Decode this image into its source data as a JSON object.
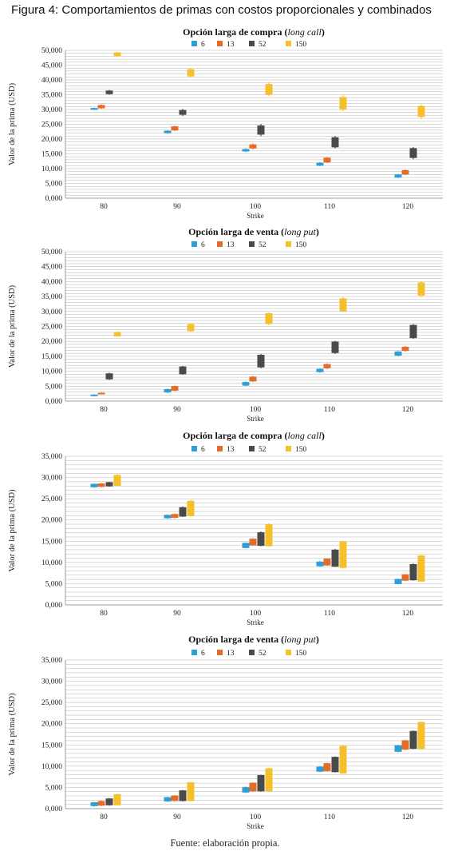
{
  "figure_title": "Figura 4: Comportamientos de primas con costos proporcionales y combinados",
  "source": "Fuente: elaboración propia.",
  "legend_labels": [
    "6",
    "13",
    "52",
    "150"
  ],
  "colors": {
    "6": "#2e9fd6",
    "13": "#e46c2a",
    "52": "#4a4a4a",
    "150": "#f5c02a",
    "grid": "#b5b5b5"
  },
  "chart_data": [
    {
      "type": "candlestick",
      "title_main": "Opción larga de compra (",
      "title_em": "long call",
      "title_end": ")",
      "xlabel": "Strike",
      "ylabel": "Valor de la prima (USD)",
      "categories": [
        "80",
        "90",
        "100",
        "110",
        "120"
      ],
      "yticks": [
        "0,000",
        "5,000",
        "10,000",
        "15,000",
        "20,000",
        "25,000",
        "30,000",
        "35,000",
        "40,000",
        "45,000",
        "50,000"
      ],
      "ylim": [
        0,
        50000
      ],
      "series": [
        {
          "name": "6",
          "low": [
            29800,
            21800,
            15600,
            10800,
            6800
          ],
          "high": [
            30600,
            23000,
            16800,
            12200,
            8200
          ],
          "open": [
            29900,
            22000,
            15800,
            11000,
            7000
          ],
          "close": [
            30500,
            22800,
            16600,
            12000,
            8000
          ]
        },
        {
          "name": "13",
          "low": [
            30200,
            22700,
            16500,
            11900,
            7800
          ],
          "high": [
            31700,
            24500,
            18500,
            13900,
            9700
          ],
          "open": [
            30400,
            22900,
            16800,
            12100,
            8000
          ],
          "close": [
            31500,
            24300,
            18200,
            13700,
            9500
          ]
        },
        {
          "name": "52",
          "low": [
            35000,
            27800,
            21000,
            16800,
            13200
          ],
          "high": [
            36600,
            30200,
            25100,
            21000,
            17300
          ],
          "open": [
            35200,
            28200,
            21500,
            17200,
            13600
          ],
          "close": [
            36400,
            29800,
            24600,
            20600,
            16900
          ]
        },
        {
          "name": "150",
          "low": [
            47800,
            40800,
            34500,
            29500,
            27000
          ],
          "high": [
            49500,
            44000,
            39200,
            34800,
            31700
          ],
          "open": [
            48000,
            41200,
            35000,
            30000,
            27500
          ],
          "close": [
            49300,
            43600,
            38600,
            34200,
            31200
          ]
        }
      ]
    },
    {
      "type": "candlestick",
      "title_main": "Opción larga de venta (",
      "title_em": "long put",
      "title_end": ")",
      "xlabel": "Strike",
      "ylabel": "Valor de la prima (USD)",
      "categories": [
        "80",
        "90",
        "100",
        "110",
        "120"
      ],
      "yticks": [
        "0,000",
        "5,000",
        "10,000",
        "15,000",
        "20,000",
        "25,000",
        "30,000",
        "35,000",
        "40,000",
        "45,000",
        "50,000"
      ],
      "ylim": [
        0,
        50000
      ],
      "series": [
        {
          "name": "6",
          "low": [
            1600,
            2700,
            5000,
            9500,
            15000
          ],
          "high": [
            2300,
            4200,
            6600,
            11000,
            16800
          ],
          "open": [
            1700,
            2900,
            5200,
            9700,
            15200
          ],
          "close": [
            2200,
            4000,
            6400,
            10800,
            16600
          ]
        },
        {
          "name": "13",
          "low": [
            2300,
            3300,
            6400,
            10800,
            16600
          ],
          "high": [
            2900,
            5200,
            8400,
            12600,
            18400
          ],
          "open": [
            2400,
            3500,
            6600,
            11000,
            16800
          ],
          "close": [
            2800,
            5000,
            8200,
            12400,
            18200
          ]
        },
        {
          "name": "52",
          "low": [
            7100,
            8800,
            11000,
            15800,
            20800
          ],
          "high": [
            9500,
            11800,
            15800,
            20200,
            25800
          ],
          "open": [
            7300,
            9000,
            11300,
            16100,
            21100
          ],
          "close": [
            9300,
            11600,
            15500,
            19900,
            25500
          ]
        },
        {
          "name": "150",
          "low": [
            21500,
            23200,
            25500,
            29800,
            35000
          ],
          "high": [
            23300,
            26000,
            29700,
            34700,
            40000
          ],
          "open": [
            21700,
            23400,
            25800,
            30100,
            35300
          ],
          "close": [
            23100,
            25800,
            29400,
            34400,
            39700
          ]
        }
      ]
    },
    {
      "type": "candlestick",
      "title_main": "Opción larga de compra (",
      "title_em": "long call",
      "title_end": ")",
      "xlabel": "Strike",
      "ylabel": "Valor de la prima (USD)",
      "categories": [
        "80",
        "90",
        "100",
        "110",
        "120"
      ],
      "yticks": [
        "0,000",
        "5,000",
        "10,000",
        "15,000",
        "20,000",
        "25,000",
        "30,000",
        "35,000"
      ],
      "ylim": [
        0,
        35000
      ],
      "series": [
        {
          "name": "6",
          "low": [
            27600,
            20300,
            13300,
            9000,
            4800
          ],
          "high": [
            28600,
            21300,
            14700,
            10300,
            6200
          ],
          "open": [
            27700,
            20400,
            13400,
            9100,
            4900
          ],
          "close": [
            28500,
            21200,
            14600,
            10200,
            6100
          ]
        },
        {
          "name": "13",
          "low": [
            27700,
            20400,
            13900,
            9200,
            5600
          ],
          "high": [
            28700,
            21500,
            15700,
            11000,
            7300
          ],
          "open": [
            27800,
            20500,
            14000,
            9300,
            5700
          ],
          "close": [
            28600,
            21400,
            15600,
            10900,
            7200
          ]
        },
        {
          "name": "52",
          "low": [
            27800,
            20700,
            13800,
            8900,
            5700
          ],
          "high": [
            29000,
            23200,
            17300,
            13200,
            9800
          ],
          "open": [
            27900,
            20800,
            13900,
            9000,
            5800
          ],
          "close": [
            28900,
            23000,
            17100,
            13000,
            9600
          ]
        },
        {
          "name": "150",
          "low": [
            27900,
            20800,
            13700,
            8600,
            5400
          ],
          "high": [
            30800,
            24700,
            19200,
            15100,
            11800
          ],
          "open": [
            28000,
            20900,
            13800,
            8700,
            5500
          ],
          "close": [
            30600,
            24500,
            19000,
            14900,
            11600
          ]
        }
      ]
    },
    {
      "type": "candlestick",
      "title_main": "Opción larga de venta (",
      "title_em": "long put",
      "title_end": ")",
      "xlabel": "Strike",
      "ylabel": "Valor de la prima (USD)",
      "categories": [
        "80",
        "90",
        "100",
        "110",
        "120"
      ],
      "yticks": [
        "0,000",
        "5,000",
        "10,000",
        "15,000",
        "20,000",
        "25,000",
        "30,000",
        "35,000"
      ],
      "ylim": [
        0,
        35000
      ],
      "series": [
        {
          "name": "6",
          "low": [
            500,
            1600,
            3700,
            8600,
            13300
          ],
          "high": [
            1600,
            2800,
            5200,
            10000,
            15000
          ],
          "open": [
            600,
            1700,
            3800,
            8700,
            13400
          ],
          "close": [
            1500,
            2700,
            5100,
            9900,
            14900
          ]
        },
        {
          "name": "13",
          "low": [
            600,
            1700,
            4000,
            8700,
            13800
          ],
          "high": [
            1900,
            3200,
            6200,
            10800,
            16200
          ],
          "open": [
            700,
            1800,
            4100,
            8800,
            13900
          ],
          "close": [
            1800,
            3100,
            6100,
            10700,
            16100
          ]
        },
        {
          "name": "52",
          "low": [
            700,
            1700,
            4000,
            8500,
            14000
          ],
          "high": [
            2500,
            4400,
            8000,
            12300,
            18400
          ],
          "open": [
            800,
            1800,
            4100,
            8600,
            14100
          ],
          "close": [
            2400,
            4300,
            7900,
            12200,
            18300
          ]
        },
        {
          "name": "150",
          "low": [
            700,
            1700,
            4000,
            8200,
            14000
          ],
          "high": [
            3500,
            6300,
            9600,
            14900,
            20500
          ],
          "open": [
            800,
            1800,
            4100,
            8300,
            14100
          ],
          "close": [
            3400,
            6200,
            9500,
            14800,
            20400
          ]
        }
      ]
    }
  ]
}
